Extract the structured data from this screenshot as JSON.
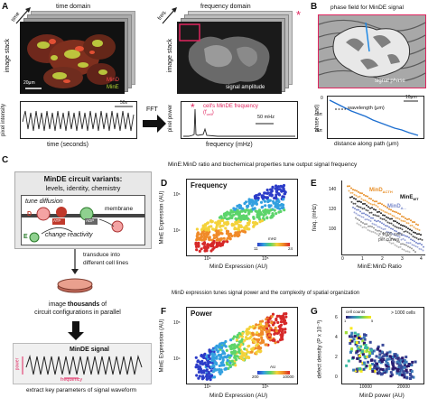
{
  "panels": {
    "A": {
      "letter": "A",
      "time_arrow_label": "time",
      "time_domain_title": "time domain",
      "image_stack_label_left": "image stack",
      "scalebar_left": "20μm",
      "legend": {
        "mind": "MinD",
        "mine": "MinE"
      },
      "pixel_intensity_label": "pixel intensity",
      "time_axis_label": "time (seconds)",
      "scalebar_time": "50s",
      "fft_label": "FFT",
      "freq_arrow_label": "freq.",
      "frequency_domain_title": "frequency domain",
      "image_stack_label_right": "image stack",
      "signal_amplitude": "signal amplitude",
      "pixel_power_label": "pixel power",
      "frequency_axis_label": "frequency (mHz)",
      "peak_annotation": "cell's MinDE frequency",
      "f_cell": "(f",
      "f_cell_sub": "cell",
      "f_cell_close": ")",
      "scalebar_freq": "50 mHz"
    },
    "B": {
      "letter": "B",
      "title": "phase field for MinDE signal",
      "signal_phase": "signal phase",
      "phase_ylabel": "phase (rad)",
      "wavelength": "wavelength (μm)",
      "xlabel": "distance along path (μm)",
      "scalebar": "10μm",
      "ytick_top": "0",
      "ytick_mid": "-2π",
      "ytick_bot": "-4π"
    },
    "C": {
      "letter": "C",
      "variants_title": "MinDE circuit variants:",
      "variants_sub": "levels, identity, chemistry",
      "tune_diffusion": "tune diffusion",
      "membrane": "membrane",
      "change_reactivity": "change reactivity",
      "d": "D",
      "e": "E",
      "atp": "ATP",
      "adp": "ADP",
      "transduce": "transduce into",
      "transduce2": "different cell lines",
      "image_line1": "image",
      "image_thousands": "thousands",
      "image_line1b": "of",
      "image_line2": "circuit configurations in parallel",
      "signal_title": "MinDE signal",
      "power": "power",
      "frequency": "frequency",
      "extract": "extract key parameters of signal waveform"
    },
    "D": {
      "letter": "D",
      "section_title": "MinE:MinD ratio and biochemical properties tune output signal frequency",
      "inner_label": "Frequency",
      "ylabel": "MinE Expression (AU)",
      "xlabel": "MinD Expression (AU)",
      "colorbar_unit": "mHz",
      "colorbar_min": "11",
      "colorbar_max": "24",
      "ytick_1": "10⁵",
      "ytick_2": "10⁴",
      "xtick_1": "10⁴",
      "xtick_2": "10⁵"
    },
    "E": {
      "letter": "E",
      "ylabel": "freq. (mHz)",
      "xlabel": "MinE:MinD Ratio",
      "series": [
        "MinD",
        "MinE",
        "MinD"
      ],
      "series_subs": [
        "ΔCTH",
        "WT",
        "Δ..."
      ],
      "note1": "> 1000 cells",
      "note2": "per curves",
      "yticks": [
        "100",
        "120",
        "140"
      ],
      "xticks": [
        "0",
        "1",
        "2",
        "3",
        "4"
      ]
    },
    "F": {
      "letter": "F",
      "section_title": "MinD expression tunes signal power and the complexity of spatial organization",
      "inner_label": "Power",
      "ylabel": "MinE Expression (AU)",
      "xlabel": "MinD Expression (AU)",
      "colorbar_unit": "AU",
      "colorbar_min": "200",
      "colorbar_max": "10000",
      "ytick_1": "10⁵",
      "ytick_2": "10⁴",
      "xtick_1": "10⁴",
      "xtick_2": "10⁵"
    },
    "G": {
      "letter": "G",
      "ylabel": "defect density (P x 10⁻³)",
      "xlabel": "MinD power (AU)",
      "legend_title": "cell counts",
      "legend_min": "1",
      "legend_max": "5",
      "note": "> 1000 cells",
      "xticks": [
        "10000",
        "20000"
      ],
      "yticks": [
        "0",
        "2",
        "4",
        "6"
      ]
    }
  }
}
